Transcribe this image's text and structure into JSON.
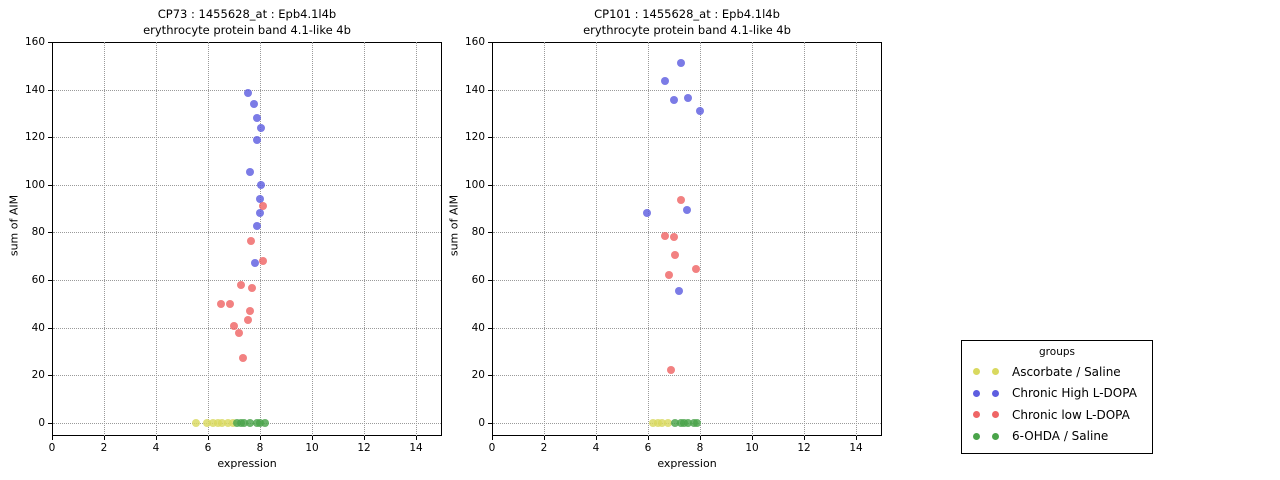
{
  "chart_data": [
    {
      "panel": "CP73",
      "type": "scatter",
      "title_line1": "CP73 : 1455628_at : Epb4.1l4b",
      "title_line2": "erythrocyte protein band 4.1-like 4b",
      "xlabel": "expression",
      "ylabel": "sum of AIM",
      "xlim": [
        0,
        15
      ],
      "ylim": [
        -5.6,
        160
      ],
      "xticks": [
        0,
        2,
        4,
        6,
        8,
        10,
        12,
        14
      ],
      "yticks": [
        0,
        20,
        40,
        60,
        80,
        100,
        120,
        140,
        160
      ],
      "grid": true,
      "series": [
        {
          "name": "Ascorbate / Saline",
          "color": "#d9d95f",
          "points": [
            [
              5.55,
              0
            ],
            [
              5.95,
              0
            ],
            [
              6.2,
              0
            ],
            [
              6.4,
              0
            ],
            [
              6.55,
              0
            ],
            [
              6.75,
              0
            ],
            [
              6.95,
              0
            ]
          ]
        },
        {
          "name": "Chronic High L-DOPA",
          "color": "#5e5ee0",
          "points": [
            [
              7.55,
              138.5
            ],
            [
              7.75,
              134
            ],
            [
              7.9,
              128
            ],
            [
              8.05,
              124
            ],
            [
              7.9,
              119
            ],
            [
              7.6,
              105.5
            ],
            [
              8.05,
              100
            ],
            [
              8.0,
              94
            ],
            [
              8.0,
              88
            ],
            [
              7.9,
              82.5
            ],
            [
              7.8,
              67
            ]
          ]
        },
        {
          "name": "Chronic low L-DOPA",
          "color": "#ef6565",
          "points": [
            [
              8.1,
              91
            ],
            [
              7.65,
              76.5
            ],
            [
              8.1,
              68
            ],
            [
              7.25,
              58
            ],
            [
              7.7,
              56.5
            ],
            [
              6.5,
              50
            ],
            [
              6.85,
              50
            ],
            [
              7.6,
              47
            ],
            [
              7.55,
              43
            ],
            [
              7.0,
              40.5
            ],
            [
              7.2,
              37.5
            ],
            [
              7.35,
              27
            ]
          ]
        },
        {
          "name": "6-OHDA / Saline",
          "color": "#4aa44a",
          "points": [
            [
              7.1,
              0
            ],
            [
              7.25,
              0
            ],
            [
              7.4,
              0
            ],
            [
              7.6,
              0
            ],
            [
              7.9,
              0
            ],
            [
              8.0,
              0
            ],
            [
              8.2,
              0
            ]
          ]
        }
      ]
    },
    {
      "panel": "CP101",
      "type": "scatter",
      "title_line1": "CP101 : 1455628_at : Epb4.1l4b",
      "title_line2": "erythrocyte protein band 4.1-like 4b",
      "xlabel": "expression",
      "ylabel": "sum of AIM",
      "xlim": [
        0,
        15
      ],
      "ylim": [
        -5.6,
        160
      ],
      "xticks": [
        0,
        2,
        4,
        6,
        8,
        10,
        12,
        14
      ],
      "yticks": [
        0,
        20,
        40,
        60,
        80,
        100,
        120,
        140,
        160
      ],
      "grid": true,
      "series": [
        {
          "name": "Ascorbate / Saline",
          "color": "#d9d95f",
          "points": [
            [
              6.2,
              0
            ],
            [
              6.4,
              0
            ],
            [
              6.55,
              0
            ],
            [
              6.75,
              0
            ]
          ]
        },
        {
          "name": "Chronic High L-DOPA",
          "color": "#5e5ee0",
          "points": [
            [
              7.25,
              151
            ],
            [
              6.65,
              143.5
            ],
            [
              7.55,
              136.5
            ],
            [
              7.0,
              135.5
            ],
            [
              8.0,
              131
            ],
            [
              7.5,
              89.5
            ],
            [
              5.95,
              88
            ],
            [
              7.2,
              55.5
            ]
          ]
        },
        {
          "name": "Chronic low L-DOPA",
          "color": "#ef6565",
          "points": [
            [
              7.25,
              93.5
            ],
            [
              6.65,
              78.5
            ],
            [
              7.0,
              78
            ],
            [
              7.05,
              70.5
            ],
            [
              7.85,
              64.5
            ],
            [
              6.8,
              62
            ],
            [
              6.9,
              22
            ]
          ]
        },
        {
          "name": "6-OHDA / Saline",
          "color": "#4aa44a",
          "points": [
            [
              7.05,
              0
            ],
            [
              7.25,
              0
            ],
            [
              7.4,
              0
            ],
            [
              7.55,
              0
            ],
            [
              7.75,
              0
            ],
            [
              7.9,
              0
            ]
          ]
        }
      ]
    }
  ],
  "legend": {
    "title": "groups",
    "entries": [
      {
        "label": "Ascorbate / Saline",
        "color": "#d9d95f"
      },
      {
        "label": "Chronic High L-DOPA",
        "color": "#5e5ee0"
      },
      {
        "label": "Chronic low L-DOPA",
        "color": "#ef6565"
      },
      {
        "label": "6-OHDA / Saline",
        "color": "#4aa44a"
      }
    ]
  }
}
